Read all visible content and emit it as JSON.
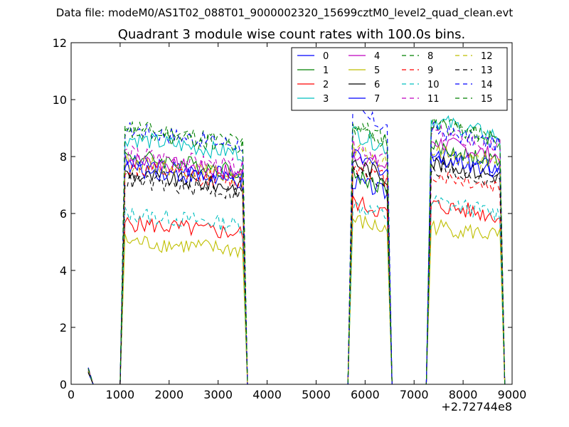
{
  "chart_data": {
    "type": "line",
    "suptitle": "Data file: modeM0/AS1T02_088T01_9000002320_15699cztM0_level2_quad_clean.evt",
    "title": "Quadrant 3 module wise count rates with 100.0s bins.",
    "xlabel": "",
    "ylabel": "",
    "x_offset_label": "+2.72744e8",
    "xlim": [
      0,
      9000
    ],
    "ylim": [
      0,
      12
    ],
    "x_ticks": [
      0,
      1000,
      2000,
      3000,
      4000,
      5000,
      6000,
      7000,
      8000,
      9000
    ],
    "y_ticks": [
      0,
      2,
      4,
      6,
      8,
      10,
      12
    ],
    "legend_position": "top-right",
    "segments": [
      {
        "start": 350,
        "end": 450,
        "level": 0.6
      },
      {
        "start": 450,
        "end": 1000,
        "level": 0
      },
      {
        "start": 1000,
        "end": 1100,
        "level": "ramp"
      },
      {
        "start": 1100,
        "end": 3500,
        "level": "on"
      },
      {
        "start": 3500,
        "end": 3600,
        "level": "ramp"
      },
      {
        "start": 3600,
        "end": 5650,
        "level": 0
      },
      {
        "start": 5650,
        "end": 5750,
        "level": "ramp"
      },
      {
        "start": 5750,
        "end": 6450,
        "level": "on"
      },
      {
        "start": 6450,
        "end": 6600,
        "level": "ramp"
      },
      {
        "start": 6600,
        "end": 7250,
        "level": 0
      },
      {
        "start": 7250,
        "end": 7350,
        "level": "ramp"
      },
      {
        "start": 7350,
        "end": 8750,
        "level": "on"
      }
    ],
    "series": [
      {
        "name": "0",
        "color": "#0000ff",
        "style": "solid",
        "on_levels": [
          7.6,
          7.0,
          7.9
        ]
      },
      {
        "name": "1",
        "color": "#008000",
        "style": "solid",
        "on_levels": [
          7.8,
          7.2,
          8.1
        ]
      },
      {
        "name": "2",
        "color": "#ff0000",
        "style": "solid",
        "on_levels": [
          5.6,
          6.3,
          6.2
        ]
      },
      {
        "name": "3",
        "color": "#00bfbf",
        "style": "solid",
        "on_levels": [
          8.4,
          8.6,
          9.0
        ]
      },
      {
        "name": "4",
        "color": "#bf00bf",
        "style": "solid",
        "on_levels": [
          7.7,
          7.9,
          8.3
        ]
      },
      {
        "name": "5",
        "color": "#bfbf00",
        "style": "solid",
        "on_levels": [
          5.0,
          5.7,
          5.5
        ]
      },
      {
        "name": "6",
        "color": "#000000",
        "style": "solid",
        "on_levels": [
          7.2,
          7.6,
          7.6
        ]
      },
      {
        "name": "7",
        "color": "#0000ff",
        "style": "solid",
        "on_levels": [
          7.4,
          7.8,
          7.8
        ]
      },
      {
        "name": "8",
        "color": "#008000",
        "style": "dashed",
        "on_levels": [
          8.8,
          8.9,
          8.9
        ]
      },
      {
        "name": "9",
        "color": "#ff0000",
        "style": "dashed",
        "on_levels": [
          7.4,
          7.5,
          7.2
        ]
      },
      {
        "name": "10",
        "color": "#00bfbf",
        "style": "dashed",
        "on_levels": [
          5.9,
          6.2,
          6.3
        ]
      },
      {
        "name": "11",
        "color": "#bf00bf",
        "style": "dashed",
        "on_levels": [
          7.9,
          8.2,
          8.6
        ]
      },
      {
        "name": "12",
        "color": "#bfbf00",
        "style": "dashed",
        "on_levels": [
          7.6,
          8.0,
          8.0
        ]
      },
      {
        "name": "13",
        "color": "#000000",
        "style": "dashed",
        "on_levels": [
          7.0,
          7.3,
          7.4
        ]
      },
      {
        "name": "14",
        "color": "#0000ff",
        "style": "dashed",
        "on_levels": [
          8.7,
          9.3,
          8.7
        ]
      },
      {
        "name": "15",
        "color": "#008000",
        "style": "dashed",
        "on_levels": [
          8.6,
          8.8,
          8.9
        ]
      }
    ]
  }
}
